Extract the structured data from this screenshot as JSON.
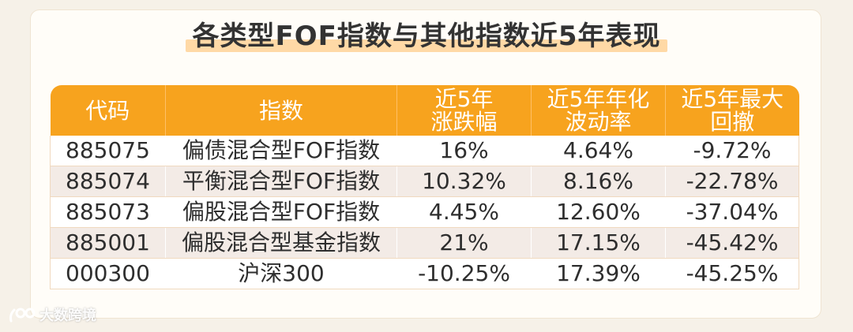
{
  "title": "各类型FOF指数与其他指数近5年表现",
  "table": {
    "headers": [
      "代码",
      "指数",
      "近5年\n涨跌幅",
      "近5年年化\n波动率",
      "近5年最大\n回撤"
    ],
    "rows": [
      [
        "885075",
        "偏债混合型FOF指数",
        "16%",
        "4.64%",
        "-9.72%"
      ],
      [
        "885074",
        "平衡混合型FOF指数",
        "10.32%",
        "8.16%",
        "-22.78%"
      ],
      [
        "885073",
        "偏股混合型FOF指数",
        "4.45%",
        "12.60%",
        "-37.04%"
      ],
      [
        "885001",
        "偏股混合型基金指数",
        "21%",
        "17.15%",
        "-45.42%"
      ],
      [
        "000300",
        "沪深300",
        "-10.25%",
        "17.39%",
        "-45.25%"
      ]
    ]
  },
  "watermark": {
    "text": "大数跨境",
    "icon": "brand-logo-icon"
  }
}
